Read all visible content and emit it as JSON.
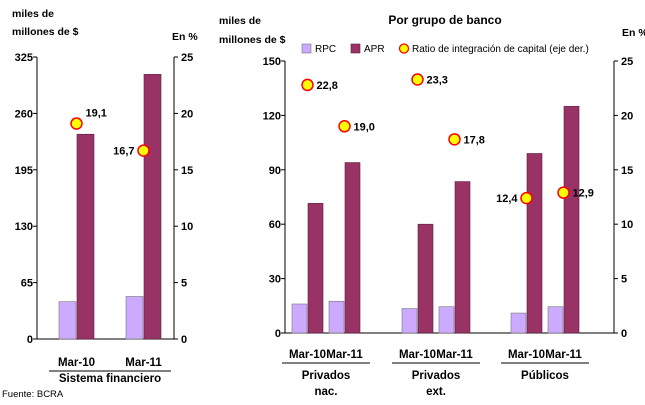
{
  "source_note": "Fuente: BCRA",
  "colors": {
    "rpc": "#ccaaff",
    "apr": "#993366",
    "ratio_fill": "#ffff00",
    "ratio_stroke": "#ff0000"
  },
  "chart_data": [
    {
      "type": "bar",
      "title": "",
      "ylabel": "miles de millones de $",
      "ylabel_lines": [
        "miles de",
        "millones de $"
      ],
      "y2label": "En %",
      "ylim": [
        0,
        325
      ],
      "yticks": [
        "0",
        "65",
        "130",
        "195",
        "260",
        "325"
      ],
      "y2lim": [
        0,
        25
      ],
      "y2ticks": [
        "0",
        "5",
        "10",
        "15",
        "20",
        "25"
      ],
      "grid": false,
      "categories": [
        "Mar-10",
        "Mar-11"
      ],
      "group_labels": [
        [
          "Sistema financiero"
        ]
      ],
      "series": [
        {
          "name": "RPC",
          "values": [
            43,
            49
          ],
          "axis": "left"
        },
        {
          "name": "APR",
          "values": [
            236,
            305
          ],
          "axis": "left"
        },
        {
          "name": "Ratio de integración de capital (eje der.)",
          "values": [
            19.1,
            16.7
          ],
          "value_labels": [
            "19,1",
            "16,7"
          ],
          "axis": "right",
          "kind": "marker"
        }
      ]
    },
    {
      "type": "bar",
      "title": "Por grupo de banco",
      "ylabel": "miles de millones de $",
      "ylabel_lines": [
        "miles de",
        "millones de $"
      ],
      "y2label": "En %",
      "ylim": [
        0,
        150
      ],
      "yticks": [
        "0",
        "30",
        "60",
        "90",
        "120",
        "150"
      ],
      "y2lim": [
        0,
        25
      ],
      "y2ticks": [
        "0",
        "5",
        "10",
        "15",
        "20",
        "25"
      ],
      "grid": false,
      "legend_position": "top",
      "categories": [
        "Mar-10",
        "Mar-11",
        "Mar-10",
        "Mar-11",
        "Mar-10",
        "Mar-11"
      ],
      "group_labels": [
        [
          "Privados",
          "nac."
        ],
        [
          "Privados",
          "ext."
        ],
        [
          "Públicos"
        ]
      ],
      "series": [
        {
          "name": "RPC",
          "values": [
            16,
            17.5,
            13.5,
            14.5,
            11,
            14.5
          ],
          "axis": "left"
        },
        {
          "name": "APR",
          "values": [
            71.5,
            94,
            60,
            83.5,
            99,
            125
          ],
          "axis": "left"
        },
        {
          "name": "Ratio de integración de capital (eje der.)",
          "values": [
            22.8,
            19.0,
            23.3,
            17.8,
            12.4,
            12.9
          ],
          "value_labels": [
            "22,8",
            "19,0",
            "23,3",
            "17,8",
            "12,4",
            "12,9"
          ],
          "axis": "right",
          "kind": "marker"
        }
      ]
    }
  ]
}
